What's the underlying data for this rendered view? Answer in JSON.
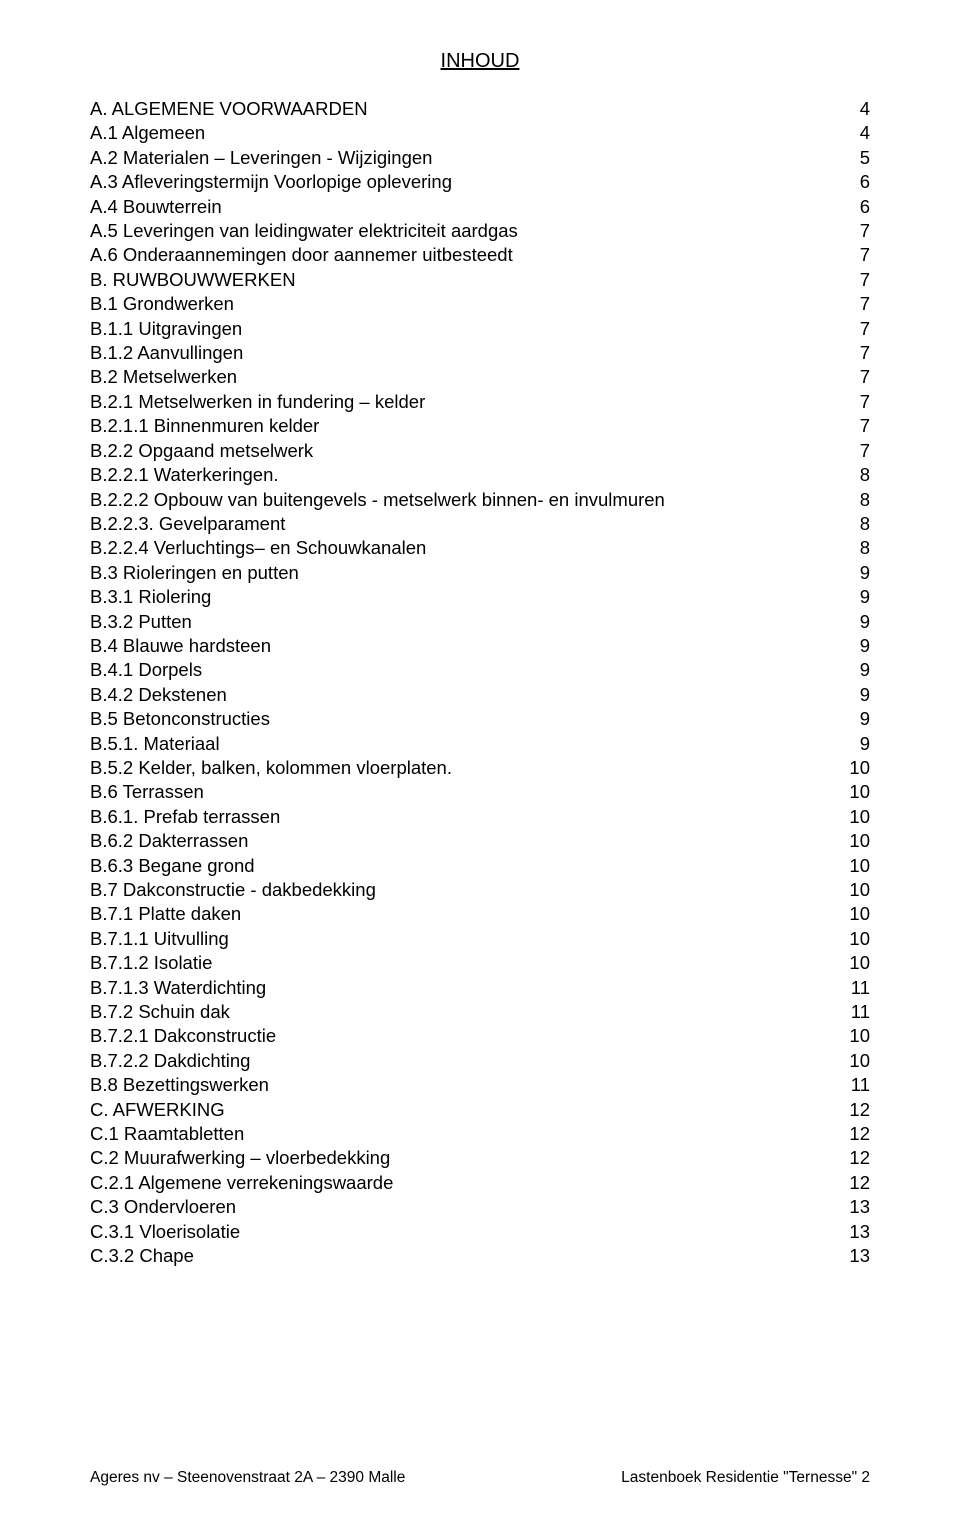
{
  "doc": {
    "title": "INHOUD",
    "footer_left": "Ageres nv – Steenovenstraat 2A – 2390 Malle",
    "footer_right": "Lastenboek Residentie \"Ternesse\"  2"
  },
  "toc": [
    {
      "label": "A. ALGEMENE VOORWAARDEN",
      "page": "4"
    },
    {
      "label": "A.1 Algemeen",
      "page": "4"
    },
    {
      "label": "A.2 Materialen – Leveringen - Wijzigingen",
      "page": "5"
    },
    {
      "label": "A.3 Afleveringstermijn Voorlopige oplevering",
      "page": "6"
    },
    {
      "label": "A.4 Bouwterrein",
      "page": "6"
    },
    {
      "label": "A.5 Leveringen van leidingwater elektriciteit aardgas",
      "page": "7"
    },
    {
      "label": "A.6 Onderaannemingen door aannemer uitbesteedt",
      "page": "7"
    },
    {
      "label": "B. RUWBOUWWERKEN",
      "page": "7"
    },
    {
      "label": "B.1 Grondwerken",
      "page": "7"
    },
    {
      "label": "B.1.1 Uitgravingen",
      "page": "7"
    },
    {
      "label": "B.1.2 Aanvullingen",
      "page": "7"
    },
    {
      "label": "B.2 Metselwerken",
      "page": "7"
    },
    {
      "label": "B.2.1 Metselwerken in fundering – kelder",
      "page": "7"
    },
    {
      "label": "B.2.1.1 Binnenmuren kelder",
      "page": "7"
    },
    {
      "label": "B.2.2 Opgaand metselwerk",
      "page": "7"
    },
    {
      "label": "B.2.2.1 Waterkeringen.",
      "page": "8"
    },
    {
      "label": "B.2.2.2 Opbouw van buitengevels - metselwerk  binnen- en invulmuren",
      "page": "8"
    },
    {
      "label": "B.2.2.3. Gevelparament",
      "page": "8"
    },
    {
      "label": "B.2.2.4 Verluchtings– en Schouwkanalen",
      "page": "8"
    },
    {
      "label": "B.3 Rioleringen en putten",
      "page": "9"
    },
    {
      "label": "B.3.1 Riolering",
      "page": "9"
    },
    {
      "label": "B.3.2 Putten",
      "page": "9"
    },
    {
      "label": "B.4 Blauwe hardsteen",
      "page": "9"
    },
    {
      "label": "B.4.1 Dorpels",
      "page": "9"
    },
    {
      "label": "B.4.2 Dekstenen",
      "page": "9"
    },
    {
      "label": "B.5 Betonconstructies",
      "page": "9"
    },
    {
      "label": "B.5.1. Materiaal",
      "page": "9"
    },
    {
      "label": "B.5.2 Kelder, balken, kolommen vloerplaten.",
      "page": "10"
    },
    {
      "label": "B.6 Terrassen",
      "page": "10"
    },
    {
      "label": "B.6.1. Prefab terrassen",
      "page": "10"
    },
    {
      "label": "B.6.2 Dakterrassen",
      "page": "10"
    },
    {
      "label": "B.6.3 Begane grond",
      "page": "10"
    },
    {
      "label": "B.7 Dakconstructie - dakbedekking",
      "page": "10"
    },
    {
      "label": "B.7.1 Platte daken",
      "page": "10"
    },
    {
      "label": "B.7.1.1 Uitvulling",
      "page": "10"
    },
    {
      "label": "B.7.1.2 Isolatie",
      "page": "10"
    },
    {
      "label": "B.7.1.3 Waterdichting",
      "page": "11"
    },
    {
      "label": "B.7.2 Schuin dak",
      "page": "11"
    },
    {
      "label": "B.7.2.1 Dakconstructie",
      "page": "10"
    },
    {
      "label": "B.7.2.2 Dakdichting",
      "page": "10"
    },
    {
      "label": "B.8 Bezettingswerken",
      "page": "11"
    },
    {
      "label": "C. AFWERKING",
      "page": "12"
    },
    {
      "label": "C.1 Raamtabletten",
      "page": "12"
    },
    {
      "label": "C.2 Muurafwerking – vloerbedekking",
      "page": "12"
    },
    {
      "label": "C.2.1 Algemene verrekeningswaarde",
      "page": "12"
    },
    {
      "label": "C.3 Ondervloeren",
      "page": "13"
    },
    {
      "label": "C.3.1 Vloerisolatie",
      "page": "13"
    },
    {
      "label": "C.3.2 Chape",
      "page": "13"
    }
  ]
}
